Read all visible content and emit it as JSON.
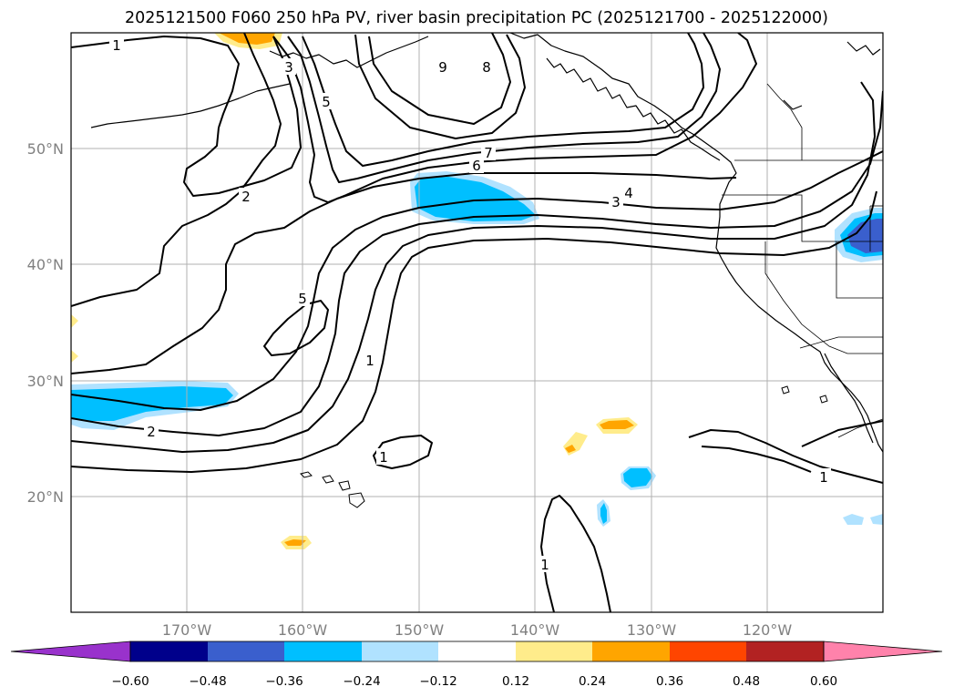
{
  "title": "2025121500 F060 250 hPa PV, river basin precipitation PC (2025121700 - 2025122000)",
  "map": {
    "lon_range": [
      -180,
      -110
    ],
    "lat_range": [
      10,
      60
    ],
    "lat_ticks": [
      {
        "value": 50,
        "label": "50°N"
      },
      {
        "value": 40,
        "label": "40°N"
      },
      {
        "value": 30,
        "label": "30°N"
      },
      {
        "value": 20,
        "label": "20°N"
      }
    ],
    "lon_ticks": [
      {
        "value": -170,
        "label": "170°W"
      },
      {
        "value": -160,
        "label": "160°W"
      },
      {
        "value": -150,
        "label": "150°W"
      },
      {
        "value": -140,
        "label": "140°W"
      },
      {
        "value": -130,
        "label": "130°W"
      },
      {
        "value": -120,
        "label": "120°W"
      }
    ]
  },
  "pv_contour_labels": [
    "1",
    "3",
    "5",
    "9",
    "8",
    "7",
    "6",
    "4",
    "3",
    "2",
    "5",
    "1",
    "1",
    "2",
    "1",
    "1"
  ],
  "colorbar": {
    "colors": [
      "#9932cc",
      "#00008b",
      "#3a5fcd",
      "#00bfff",
      "#b0e2ff",
      "#ffffff",
      "#ffec8b",
      "#ffa500",
      "#ff4500",
      "#b22222",
      "#ff82ab"
    ],
    "tick_labels": [
      "−0.60",
      "−0.48",
      "−0.36",
      "−0.24",
      "−0.12",
      "0.12",
      "0.24",
      "0.36",
      "0.48",
      "0.60"
    ]
  }
}
